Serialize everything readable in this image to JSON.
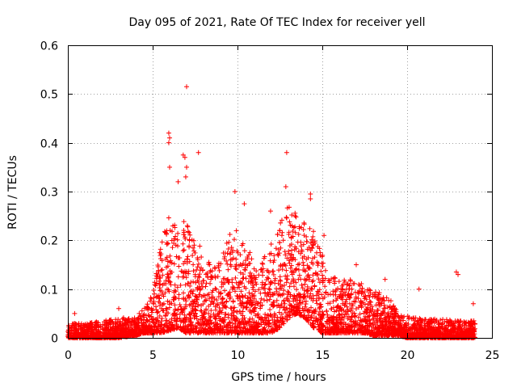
{
  "chart_data": {
    "type": "scatter",
    "title": "Day 095 of 2021, Rate Of TEC Index for receiver yell",
    "xlabel": "GPS time / hours",
    "ylabel": "ROTI / TECUs",
    "xlim": [
      0,
      25
    ],
    "ylim": [
      0,
      0.6
    ],
    "xticks": [
      0,
      5,
      10,
      15,
      20,
      25
    ],
    "yticks": [
      0,
      0.1,
      0.2,
      0.3,
      0.4,
      0.5,
      0.6
    ],
    "grid": true,
    "marker": "+",
    "color": "#ff0000",
    "notable_points": [
      {
        "x": 7.0,
        "y": 0.515
      },
      {
        "x": 5.95,
        "y": 0.42
      },
      {
        "x": 6.0,
        "y": 0.41
      },
      {
        "x": 5.95,
        "y": 0.4
      },
      {
        "x": 7.7,
        "y": 0.38
      },
      {
        "x": 12.9,
        "y": 0.38
      },
      {
        "x": 6.8,
        "y": 0.375
      },
      {
        "x": 6.9,
        "y": 0.37
      },
      {
        "x": 6.0,
        "y": 0.35
      },
      {
        "x": 7.0,
        "y": 0.35
      },
      {
        "x": 6.95,
        "y": 0.33
      },
      {
        "x": 6.5,
        "y": 0.32
      },
      {
        "x": 12.85,
        "y": 0.31
      },
      {
        "x": 9.85,
        "y": 0.3
      },
      {
        "x": 14.3,
        "y": 0.295
      },
      {
        "x": 14.3,
        "y": 0.285
      },
      {
        "x": 10.4,
        "y": 0.275
      },
      {
        "x": 11.95,
        "y": 0.26
      },
      {
        "x": 13.4,
        "y": 0.25
      },
      {
        "x": 15.1,
        "y": 0.21
      },
      {
        "x": 17.0,
        "y": 0.15
      },
      {
        "x": 18.7,
        "y": 0.12
      },
      {
        "x": 20.7,
        "y": 0.1
      },
      {
        "x": 22.9,
        "y": 0.135
      },
      {
        "x": 23.0,
        "y": 0.13
      },
      {
        "x": 23.9,
        "y": 0.07
      },
      {
        "x": 0.4,
        "y": 0.05
      },
      {
        "x": 3.0,
        "y": 0.06
      }
    ],
    "envelope_hours": [
      0,
      1,
      2,
      3,
      4,
      4.5,
      5,
      5.5,
      6,
      6.5,
      7,
      7.5,
      8,
      8.5,
      9,
      9.5,
      10,
      10.5,
      11,
      11.5,
      12,
      12.5,
      13,
      13.5,
      14,
      14.5,
      15,
      15.5,
      16,
      16.5,
      17,
      17.5,
      18,
      18.5,
      19,
      19.5,
      20,
      21,
      22,
      23,
      24
    ],
    "envelope_upper": [
      0.03,
      0.03,
      0.035,
      0.04,
      0.045,
      0.06,
      0.09,
      0.2,
      0.26,
      0.22,
      0.25,
      0.2,
      0.18,
      0.14,
      0.16,
      0.22,
      0.22,
      0.18,
      0.17,
      0.16,
      0.2,
      0.26,
      0.28,
      0.25,
      0.24,
      0.22,
      0.18,
      0.13,
      0.12,
      0.12,
      0.13,
      0.1,
      0.1,
      0.09,
      0.08,
      0.05,
      0.045,
      0.04,
      0.04,
      0.035,
      0.035
    ],
    "envelope_lower": [
      0.0,
      0.0,
      0.0,
      0.0,
      0.005,
      0.01,
      0.01,
      0.01,
      0.015,
      0.02,
      0.01,
      0.01,
      0.01,
      0.01,
      0.01,
      0.01,
      0.01,
      0.01,
      0.01,
      0.01,
      0.01,
      0.02,
      0.04,
      0.05,
      0.04,
      0.02,
      0.01,
      0.01,
      0.01,
      0.01,
      0.01,
      0.01,
      0.005,
      0.005,
      0.005,
      0.005,
      0.0,
      0.0,
      0.0,
      0.0,
      0.0
    ],
    "point_count": 4200
  }
}
